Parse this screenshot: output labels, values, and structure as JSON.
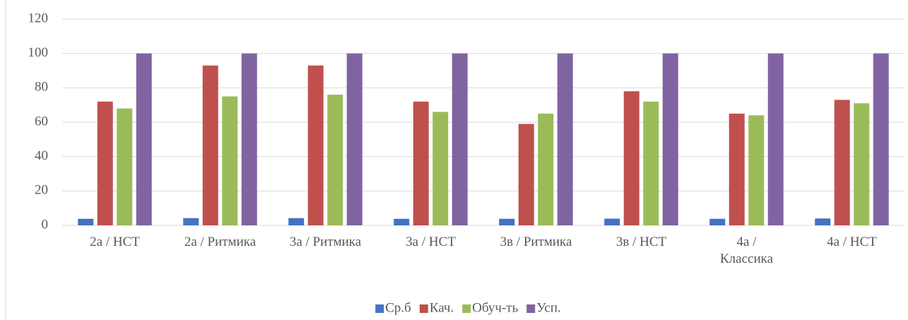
{
  "chart_data": {
    "type": "bar",
    "categories": [
      "2а / НСТ",
      "2а / Ритмика",
      "3а / Ритмика",
      "3а / НСТ",
      "3в / Ритмика",
      "3в / НСТ",
      "4а / Классика",
      "4а / НСТ"
    ],
    "series": [
      {
        "name": "Ср.б",
        "color": "#4472c4",
        "values": [
          3.8,
          4.2,
          4.2,
          3.8,
          3.8,
          3.9,
          3.8,
          4.0
        ]
      },
      {
        "name": "Кач.",
        "color": "#c0504d",
        "values": [
          72,
          93,
          93,
          72,
          59,
          78,
          65,
          73
        ]
      },
      {
        "name": "Обуч-ть",
        "color": "#9bbb59",
        "values": [
          68,
          75,
          76,
          66,
          65,
          72,
          64,
          71
        ]
      },
      {
        "name": "Усп.",
        "color": "#8064a2",
        "values": [
          100,
          100,
          100,
          100,
          100,
          100,
          100,
          100
        ]
      }
    ],
    "ylim": [
      0,
      120
    ],
    "yticks": [
      0,
      20,
      40,
      60,
      80,
      100,
      120
    ],
    "grid": true,
    "legend": "bottom"
  }
}
